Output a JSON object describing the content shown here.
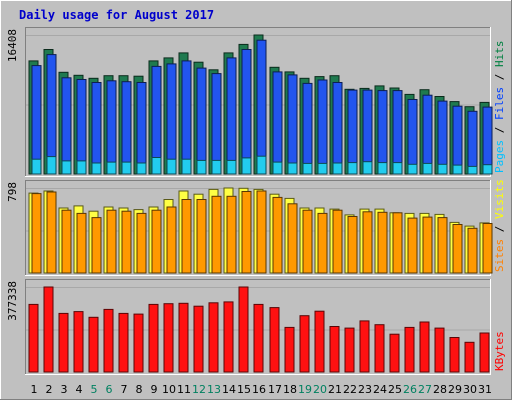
{
  "chart_data": {
    "title": "Daily usage for August 2017",
    "days": [
      "1",
      "2",
      "3",
      "4",
      "5",
      "6",
      "7",
      "8",
      "9",
      "10",
      "11",
      "12",
      "13",
      "14",
      "15",
      "16",
      "17",
      "18",
      "19",
      "20",
      "21",
      "22",
      "23",
      "24",
      "25",
      "26",
      "27",
      "28",
      "29",
      "30",
      "31"
    ],
    "weekend_days": [
      "5",
      "6",
      "12",
      "13",
      "19",
      "20",
      "26",
      "27"
    ],
    "panels": [
      {
        "type": "bar",
        "name": "hits-files-pages",
        "axis_label": "16408",
        "ylim": [
          0,
          16408
        ],
        "legend": [
          {
            "label": "Pages",
            "color": "#00c0ff"
          },
          {
            "label": "/",
            "color": "#000000"
          },
          {
            "label": "Files",
            "color": "#0040ff"
          },
          {
            "label": "/",
            "color": "#000000"
          },
          {
            "label": "Hits",
            "color": "#008040"
          }
        ],
        "series": [
          {
            "name": "Hits",
            "color": "#1f7a4f",
            "values": [
              13350,
              14700,
              12000,
              11650,
              11300,
              11600,
              11600,
              11550,
              13350,
              13700,
              14300,
              13200,
              12300,
              14300,
              15300,
              16408,
              12600,
              12050,
              11300,
              11500,
              11600,
              10000,
              10100,
              10400,
              10150,
              9400,
              9950,
              9150,
              8550,
              7950,
              8450
            ]
          },
          {
            "name": "Files",
            "color": "#2255ee",
            "values": [
              12800,
              14100,
              11350,
              11150,
              10800,
              11000,
              10900,
              10800,
              12700,
              13000,
              13350,
              12500,
              11850,
              13700,
              14700,
              15800,
              12050,
              11700,
              10700,
              11100,
              10800,
              9900,
              9900,
              9850,
              9850,
              8800,
              9300,
              8600,
              8000,
              7400,
              7900
            ]
          },
          {
            "name": "Pages",
            "color": "#22ccee",
            "values": [
              1750,
              2050,
              1550,
              1550,
              1300,
              1400,
              1400,
              1300,
              1950,
              1750,
              1750,
              1600,
              1600,
              1600,
              1900,
              2100,
              1400,
              1300,
              1250,
              1250,
              1300,
              1350,
              1450,
              1350,
              1350,
              1150,
              1250,
              1150,
              1050,
              900,
              1100
            ]
          }
        ]
      },
      {
        "type": "bar",
        "name": "visits-sites",
        "axis_label": "798",
        "ylim": [
          0,
          798
        ],
        "legend": [
          {
            "label": "Sites",
            "color": "#ff8000"
          },
          {
            "label": "/",
            "color": "#000000"
          },
          {
            "label": "Visits",
            "color": "#ffff00"
          }
        ],
        "series": [
          {
            "name": "Visits",
            "color": "#ffff44",
            "values": [
              750,
              770,
              610,
              630,
              580,
              620,
              610,
              595,
              620,
              690,
              770,
              740,
              785,
              798,
              795,
              785,
              740,
              700,
              610,
              610,
              600,
              545,
              600,
              600,
              565,
              560,
              560,
              550,
              475,
              440,
              470
            ]
          },
          {
            "name": "Sites",
            "color": "#ff9900",
            "values": [
              745,
              760,
              590,
              560,
              520,
              590,
              580,
              560,
              590,
              620,
              690,
              690,
              720,
              720,
              765,
              770,
              710,
              650,
              590,
              560,
              590,
              530,
              575,
              570,
              565,
              515,
              525,
              520,
              455,
              420,
              465
            ]
          }
        ]
      },
      {
        "type": "bar",
        "name": "kbytes",
        "axis_label": "377338",
        "ylim": [
          0,
          377338
        ],
        "legend": [
          {
            "label": "KBytes",
            "color": "#ff0000"
          }
        ],
        "series": [
          {
            "name": "KBytes",
            "color": "#ff1111",
            "values": [
              300000,
              377338,
              260000,
              268000,
              243000,
              278000,
              260000,
              257000,
              300000,
              303000,
              305000,
              292000,
              307000,
              311000,
              377338,
              300000,
              286000,
              198000,
              250000,
              270000,
              202000,
              195000,
              227000,
              210000,
              168000,
              198000,
              222000,
              195000,
              153000,
              132000,
              173000
            ]
          }
        ]
      }
    ]
  }
}
